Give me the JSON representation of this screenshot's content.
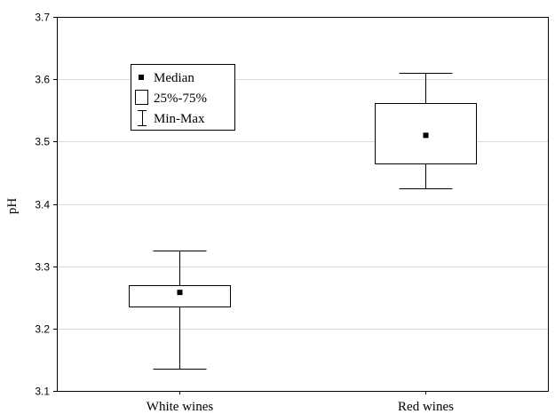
{
  "chart_data": {
    "type": "boxplot",
    "ylabel": "pH",
    "ylim": [
      3.1,
      3.7
    ],
    "yticks": [
      "3.1",
      "3.2",
      "3.3",
      "3.4",
      "3.5",
      "3.6",
      "3.7"
    ],
    "grid": "horizontal",
    "legend_position": "top-left",
    "legend": {
      "median": "Median",
      "box": "25%-75%",
      "whisker": "Min-Max"
    },
    "categories": [
      "White wines",
      "Red wines"
    ],
    "boxes": [
      {
        "category": "White wines",
        "min": 3.135,
        "q1": 3.235,
        "median": 3.258,
        "q3": 3.27,
        "max": 3.325
      },
      {
        "category": "Red wines",
        "min": 3.425,
        "q1": 3.465,
        "median": 3.51,
        "q3": 3.562,
        "max": 3.61
      }
    ]
  }
}
